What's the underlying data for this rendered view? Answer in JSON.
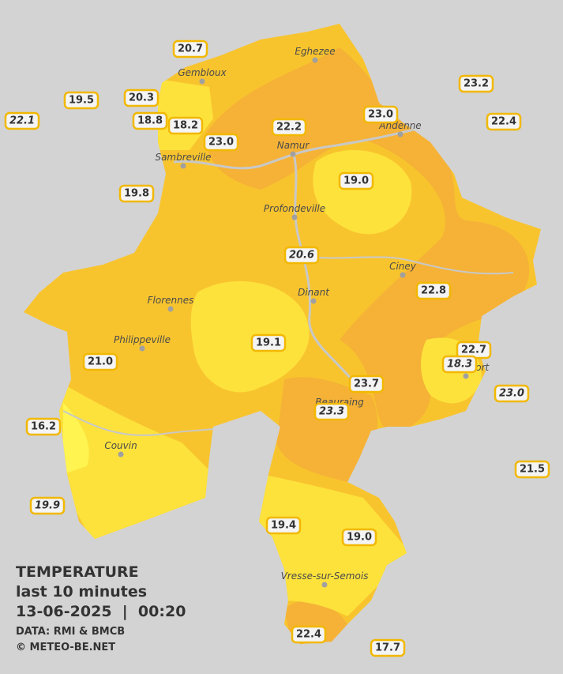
{
  "header": {
    "title": "TEMPERATURE",
    "subtitle": "last 10 minutes",
    "datetime": "13-06-2025  |  00:20",
    "source": "DATA: RMI & BMCB",
    "copyright": "© METEO-BE.NET"
  },
  "cities": [
    {
      "name": "Eghezee"
    },
    {
      "name": "Gembloux"
    },
    {
      "name": "Andenne"
    },
    {
      "name": "Namur"
    },
    {
      "name": "Sambreville"
    },
    {
      "name": "Profondeville"
    },
    {
      "name": "Ciney"
    },
    {
      "name": "Dinant"
    },
    {
      "name": "Florennes"
    },
    {
      "name": "Philippeville"
    },
    {
      "name": "Beauraing"
    },
    {
      "name": "Rochefort"
    },
    {
      "name": "Couvin"
    },
    {
      "name": "Vresse-sur-Semois"
    }
  ],
  "stations": [
    {
      "value": "20.7"
    },
    {
      "value": "19.5"
    },
    {
      "value": "20.3"
    },
    {
      "value": "22.1"
    },
    {
      "value": "18.8"
    },
    {
      "value": "18.2"
    },
    {
      "value": "23.0"
    },
    {
      "value": "22.2"
    },
    {
      "value": "23.0"
    },
    {
      "value": "23.2"
    },
    {
      "value": "22.4"
    },
    {
      "value": "19.8"
    },
    {
      "value": "19.0"
    },
    {
      "value": "20.6"
    },
    {
      "value": "22.8"
    },
    {
      "value": "19.1"
    },
    {
      "value": "22.7"
    },
    {
      "value": "18.3"
    },
    {
      "value": "21.0"
    },
    {
      "value": "23.7"
    },
    {
      "value": "23.0"
    },
    {
      "value": "23.3"
    },
    {
      "value": "16.2"
    },
    {
      "value": "21.5"
    },
    {
      "value": "19.9"
    },
    {
      "value": "19.4"
    },
    {
      "value": "19.0"
    },
    {
      "value": "22.4"
    },
    {
      "value": "17.7"
    }
  ]
}
